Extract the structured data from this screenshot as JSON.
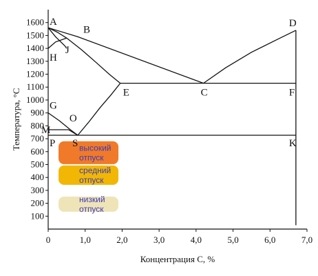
{
  "chart_data": {
    "type": "phase-diagram",
    "xlabel": "Концентрация С, %",
    "ylabel": "Температура, °С",
    "xlim": [
      0,
      7.0
    ],
    "ylim": [
      0,
      1700
    ],
    "xticks": [
      0,
      {
        "value": 1,
        "label": "1,0"
      },
      {
        "value": 2,
        "label": "2,0"
      },
      {
        "value": 3,
        "label": "3,0"
      },
      {
        "value": 4,
        "label": "4,0"
      },
      {
        "value": 5,
        "label": "5,0"
      },
      {
        "value": 6,
        "label": "6,0"
      },
      {
        "value": 7,
        "label": "7,0"
      }
    ],
    "yticks": [
      100,
      200,
      300,
      400,
      500,
      600,
      700,
      800,
      900,
      1000,
      1100,
      1200,
      1300,
      1400,
      1500,
      1600
    ],
    "color": "#111111",
    "points": [
      {
        "label": "A",
        "x": 0,
        "y": 1560
      },
      {
        "label": "B",
        "x": 0.8,
        "y": 1490
      },
      {
        "label": "H",
        "x": 0,
        "y": 1400
      },
      {
        "label": "J",
        "x": 0.5,
        "y": 1480
      },
      {
        "label": "D",
        "x": 6.7,
        "y": 1540
      },
      {
        "label": "C",
        "x": 4.2,
        "y": 1130
      },
      {
        "label": "E",
        "x": 1.95,
        "y": 1130
      },
      {
        "label": "F",
        "x": 6.7,
        "y": 1130
      },
      {
        "label": "G",
        "x": 0,
        "y": 900
      },
      {
        "label": "O",
        "x": 0.65,
        "y": 790
      },
      {
        "label": "M",
        "x": 0,
        "y": 770
      },
      {
        "label": "S",
        "x": 0.8,
        "y": 727
      },
      {
        "label": "P",
        "x": 0,
        "y": 727
      },
      {
        "label": "K",
        "x": 6.7,
        "y": 727
      }
    ],
    "curves": [
      {
        "x": [
          0,
          0.8,
          4.2
        ],
        "y": [
          1560,
          1490,
          1130
        ]
      },
      {
        "x": [
          4.2,
          4.8,
          5.5,
          6.2,
          6.7
        ],
        "y": [
          1130,
          1250,
          1370,
          1470,
          1540
        ]
      },
      {
        "x": [
          0,
          0.25,
          0.5
        ],
        "y": [
          1560,
          1525,
          1480
        ]
      },
      {
        "x": [
          0,
          0.2,
          0.45,
          0.5
        ],
        "y": [
          1560,
          1490,
          1420,
          1400
        ]
      },
      {
        "x": [
          0,
          0.2,
          0.5
        ],
        "y": [
          1400,
          1450,
          1480
        ]
      },
      {
        "x": [
          0.5,
          0.9,
          1.3,
          1.65,
          1.95
        ],
        "y": [
          1480,
          1390,
          1290,
          1200,
          1130
        ]
      },
      {
        "x": [
          1.95,
          6.7
        ],
        "y": [
          1130,
          1130
        ]
      },
      {
        "x": [
          6.7,
          6.7
        ],
        "y": [
          1540,
          30
        ]
      },
      {
        "x": [
          0,
          0.3,
          0.6,
          0.8
        ],
        "y": [
          900,
          840,
          770,
          727
        ]
      },
      {
        "x": [
          0.8,
          1.1,
          1.4,
          1.7,
          1.95
        ],
        "y": [
          727,
          830,
          940,
          1040,
          1130
        ]
      },
      {
        "x": [
          0,
          6.7
        ],
        "y": [
          727,
          727
        ]
      },
      {
        "x": [
          0,
          0.55,
          0.8
        ],
        "y": [
          770,
          770,
          727
        ]
      }
    ],
    "zones": [
      {
        "label": [
          "высокий",
          "отпуск"
        ],
        "xmin": 0.28,
        "xmax": 1.9,
        "ymin": 503,
        "ymax": 680,
        "color": "#f07a2a"
      },
      {
        "label": [
          "средний",
          "отпуск"
        ],
        "xmin": 0.28,
        "xmax": 1.9,
        "ymin": 343,
        "ymax": 493,
        "color": "#f2b705"
      },
      {
        "label": [
          "низкий",
          "отпуск"
        ],
        "xmin": 0.28,
        "xmax": 1.9,
        "ymin": 134,
        "ymax": 252,
        "color": "#efe4b8"
      }
    ]
  }
}
